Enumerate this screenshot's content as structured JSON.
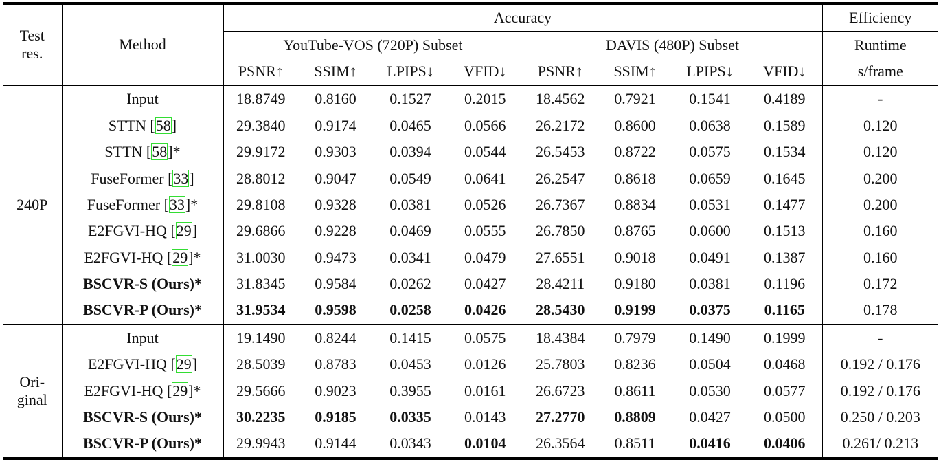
{
  "header": {
    "test_res": [
      "Test",
      "res."
    ],
    "method": "Method",
    "accuracy": "Accuracy",
    "efficiency": "Efficiency",
    "subsets": [
      "YouTube-VOS (720P) Subset",
      "DAVIS (480P) Subset"
    ],
    "runtime": "Runtime",
    "metrics": [
      "PSNR↑",
      "SSIM↑",
      "LPIPS↓",
      "VFID↓",
      "PSNR↑",
      "SSIM↑",
      "LPIPS↓",
      "VFID↓"
    ],
    "unit": "s/frame"
  },
  "groups": [
    {
      "label": [
        "240P"
      ],
      "rows": [
        {
          "method": "Input",
          "values": [
            "18.8749",
            "0.8160",
            "0.1527",
            "0.2015",
            "18.4562",
            "0.7921",
            "0.1541",
            "0.4189"
          ],
          "runtime": "-"
        },
        {
          "method": {
            "text": "STTN [",
            "cite": "58",
            "after": "]"
          },
          "values": [
            "29.3840",
            "0.9174",
            "0.0465",
            "0.0566",
            "26.2172",
            "0.8600",
            "0.0638",
            "0.1589"
          ],
          "runtime": "0.120"
        },
        {
          "method": {
            "text": "STTN [",
            "cite": "58",
            "after": "]*"
          },
          "values": [
            "29.9172",
            "0.9303",
            "0.0394",
            "0.0544",
            "26.5453",
            "0.8722",
            "0.0575",
            "0.1534"
          ],
          "runtime": "0.120"
        },
        {
          "method": {
            "text": "FuseFormer [",
            "cite": "33",
            "after": "]"
          },
          "values": [
            "28.8012",
            "0.9047",
            "0.0549",
            "0.0641",
            "26.2547",
            "0.8618",
            "0.0659",
            "0.1645"
          ],
          "runtime": "0.200"
        },
        {
          "method": {
            "text": "FuseFormer [",
            "cite": "33",
            "after": "]*"
          },
          "values": [
            "29.8108",
            "0.9328",
            "0.0381",
            "0.0526",
            "26.7367",
            "0.8834",
            "0.0531",
            "0.1477"
          ],
          "runtime": "0.200"
        },
        {
          "method": {
            "text": "E2FGVI-HQ [",
            "cite": "29",
            "after": "]"
          },
          "values": [
            "29.6866",
            "0.9228",
            "0.0469",
            "0.0555",
            "26.7850",
            "0.8765",
            "0.0600",
            "0.1513"
          ],
          "runtime": "0.160"
        },
        {
          "method": {
            "text": "E2FGVI-HQ [",
            "cite": "29",
            "after": "]*"
          },
          "values": [
            "31.0030",
            "0.9473",
            "0.0341",
            "0.0479",
            "27.6551",
            "0.9018",
            "0.0491",
            "0.1387"
          ],
          "runtime": "0.160"
        },
        {
          "method": "BSCVR-S (Ours)*",
          "bold": true,
          "values": [
            "31.8345",
            "0.9584",
            "0.0262",
            "0.0427",
            "28.4211",
            "0.9180",
            "0.0381",
            "0.1196"
          ],
          "runtime": "0.172"
        },
        {
          "method": "BSCVR-P (Ours)*",
          "bold": true,
          "bold_values": [
            0,
            1,
            2,
            3,
            4,
            5,
            6,
            7
          ],
          "values": [
            "31.9534",
            "0.9598",
            "0.0258",
            "0.0426",
            "28.5430",
            "0.9199",
            "0.0375",
            "0.1165"
          ],
          "runtime": "0.178"
        }
      ]
    },
    {
      "label": [
        "Ori-",
        "ginal"
      ],
      "rows": [
        {
          "method": "Input",
          "values": [
            "19.1490",
            "0.8244",
            "0.1415",
            "0.0575",
            "18.4384",
            "0.7979",
            "0.1490",
            "0.1999"
          ],
          "runtime": "-"
        },
        {
          "method": {
            "text": "E2FGVI-HQ [",
            "cite": "29",
            "after": "]"
          },
          "values": [
            "28.5039",
            "0.8783",
            "0.0453",
            "0.0126",
            "25.7803",
            "0.8236",
            "0.0504",
            "0.0468"
          ],
          "runtime": "0.192 / 0.176"
        },
        {
          "method": {
            "text": "E2FGVI-HQ [",
            "cite": "29",
            "after": "]*"
          },
          "values": [
            "29.5666",
            "0.9023",
            "0.3955",
            "0.0161",
            "26.6723",
            "0.8611",
            "0.0530",
            "0.0577"
          ],
          "runtime": "0.192 / 0.176"
        },
        {
          "method": "BSCVR-S (Ours)*",
          "bold": true,
          "bold_values": [
            0,
            1,
            2,
            4,
            5
          ],
          "values": [
            "30.2235",
            "0.9185",
            "0.0335",
            "0.0143",
            "27.2770",
            "0.8809",
            "0.0427",
            "0.0500"
          ],
          "runtime": "0.250 / 0.203"
        },
        {
          "method": "BSCVR-P (Ours)*",
          "bold": true,
          "bold_values": [
            3,
            6,
            7
          ],
          "values": [
            "29.9943",
            "0.9144",
            "0.0343",
            "0.0104",
            "26.3564",
            "0.8511",
            "0.0416",
            "0.0406"
          ],
          "runtime": "0.261/ 0.213"
        }
      ]
    }
  ]
}
